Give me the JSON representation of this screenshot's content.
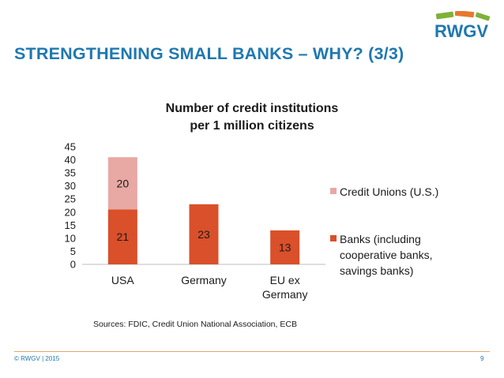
{
  "slide": {
    "title": "STRENGTHENING SMALL BANKS – WHY? (3/3)",
    "logo_text": "RWGV",
    "footer_left": "© RWGV | 2015",
    "page_number": "9",
    "sources": "Sources: FDIC, Credit Union National Association, ECB"
  },
  "colors": {
    "title": "#1f78b0",
    "banks": "#d9502a",
    "credit_unions": "#e8a8a4",
    "logo_green": "#7fb13a",
    "logo_orange": "#e8772e",
    "footer_line": "#e6a76a"
  },
  "chart_data": {
    "type": "bar",
    "stacked": true,
    "title": [
      "Number of credit institutions",
      "per 1 million citizens"
    ],
    "categories": [
      [
        "USA"
      ],
      [
        "Germany"
      ],
      [
        "EU ex",
        "Germany"
      ]
    ],
    "series": [
      {
        "name": [
          "Banks (including",
          "cooperative banks,",
          "savings banks)"
        ],
        "values": [
          21,
          23,
          13
        ]
      },
      {
        "name": [
          "Credit Unions (U.S.)"
        ],
        "values": [
          20,
          null,
          null
        ]
      }
    ],
    "ylim": [
      0,
      45
    ],
    "yticks": [
      0,
      5,
      10,
      15,
      20,
      25,
      30,
      35,
      40,
      45
    ],
    "grid": false,
    "legend": "right"
  }
}
